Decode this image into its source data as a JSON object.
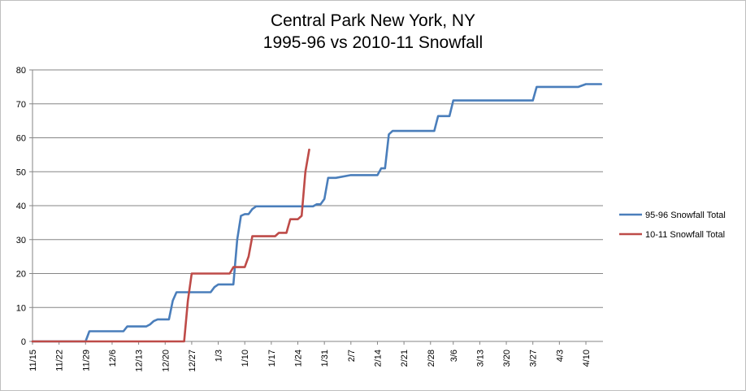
{
  "chart_data": {
    "type": "line",
    "title": "Central Park New York, NY",
    "subtitle": "1995-96 vs 2010-11 Snowfall",
    "xlabel": "",
    "ylabel": "",
    "ylim": [
      0,
      80
    ],
    "yticks": [
      0,
      10,
      20,
      30,
      40,
      50,
      60,
      70,
      80
    ],
    "grid": "horizontal",
    "legend": "right",
    "x_tick_labels": [
      "11/15",
      "11/22",
      "11/29",
      "12/6",
      "12/13",
      "12/20",
      "12/27",
      "1/3",
      "1/10",
      "1/17",
      "1/24",
      "1/31",
      "2/7",
      "2/14",
      "2/21",
      "2/28",
      "3/6",
      "3/13",
      "3/20",
      "3/27",
      "4/3",
      "4/10"
    ],
    "series": [
      {
        "name": "95-96 Snowfall Total",
        "color": "#4a7ebb",
        "x": [
          "11/15",
          "11/29",
          "11/30",
          "12/9",
          "12/10",
          "12/15",
          "12/16",
          "12/17",
          "12/18",
          "12/21",
          "12/22",
          "12/23",
          "1/1",
          "1/2",
          "1/3",
          "1/7",
          "1/8",
          "1/9",
          "1/10",
          "1/11",
          "1/12",
          "1/13",
          "1/28",
          "1/29",
          "1/30",
          "1/31",
          "2/1",
          "2/2",
          "2/3",
          "2/7",
          "2/8",
          "2/14",
          "2/15",
          "2/16",
          "2/17",
          "2/18",
          "3/1",
          "3/2",
          "3/5",
          "3/6",
          "3/27",
          "3/28",
          "3/29",
          "4/8",
          "4/10",
          "4/14"
        ],
        "values": [
          0,
          0,
          3,
          3,
          4.4,
          4.4,
          5,
          6,
          6.5,
          6.5,
          12,
          14.5,
          14.5,
          16,
          16.8,
          16.8,
          30,
          37,
          37.5,
          37.5,
          39,
          39.8,
          39.8,
          40.4,
          40.4,
          42,
          48.2,
          48.2,
          48.2,
          49,
          49,
          49,
          51,
          51,
          61,
          62,
          62,
          66.4,
          66.4,
          71,
          71,
          75,
          75,
          75,
          75.8,
          75.8
        ]
      },
      {
        "name": "10-11 Snowfall Total",
        "color": "#be4b48",
        "x": [
          "11/15",
          "12/25",
          "12/26",
          "12/27",
          "1/6",
          "1/7",
          "1/8",
          "1/10",
          "1/11",
          "1/12",
          "1/18",
          "1/19",
          "1/20",
          "1/21",
          "1/22",
          "1/24",
          "1/25",
          "1/26",
          "1/27"
        ],
        "values": [
          0,
          0,
          12,
          20,
          20,
          21.9,
          21.9,
          21.9,
          25,
          31,
          31,
          32,
          32,
          32,
          36,
          36,
          37,
          50,
          56.5
        ]
      }
    ]
  }
}
